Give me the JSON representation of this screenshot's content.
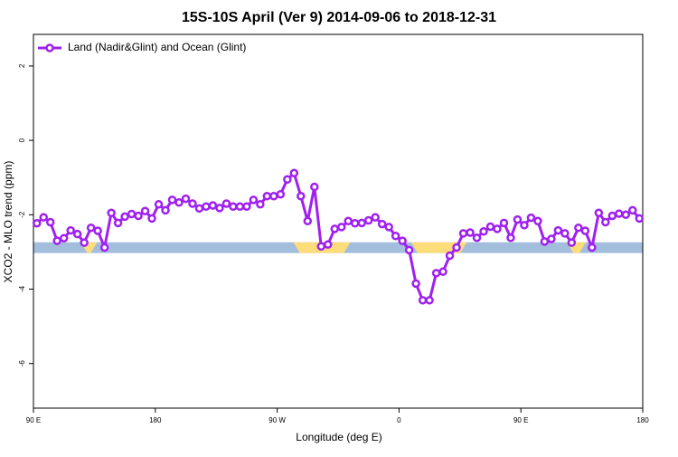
{
  "chart_data": {
    "type": "line",
    "title": "15S-10S April (Ver 9)   2014-09-06 to 2018-12-31",
    "xlabel": "Longitude (deg E)",
    "ylabel": "XCO2 - MLO trend (ppm)",
    "xlim": [
      90,
      540
    ],
    "ylim": [
      -7.2,
      2.85
    ],
    "xticks": [
      {
        "value": 90,
        "label": "90 E"
      },
      180,
      {
        "value": 270,
        "label": "90 W"
      },
      {
        "value": 360,
        "label": "0"
      },
      {
        "value": 450,
        "label": "90 E"
      },
      {
        "value": 540,
        "label": "180"
      }
    ],
    "yticks": [
      -6,
      -4,
      -2,
      0,
      2
    ],
    "legend": "top-left",
    "surface_band": {
      "ylim": [
        -3.03,
        -2.74
      ],
      "ocean_color": "#a3bedd",
      "land_color": "#fddc7a",
      "land_ranges": [
        [
          125,
          137
        ],
        [
          282,
          324
        ],
        [
          369,
          410
        ],
        [
          484,
          498
        ]
      ]
    },
    "x": [
      92.5,
      97.5,
      102.5,
      107.5,
      112.5,
      117.5,
      122.5,
      127.5,
      132.5,
      137.5,
      142.5,
      147.5,
      152.5,
      157.5,
      162.5,
      167.5,
      172.5,
      177.5,
      182.5,
      187.5,
      192.5,
      197.5,
      202.5,
      207.5,
      212.5,
      217.5,
      222.5,
      227.5,
      232.5,
      237.5,
      242.5,
      247.5,
      252.5,
      257.5,
      262.5,
      267.5,
      272.5,
      277.5,
      282.5,
      287.5,
      292.5,
      297.5,
      302.5,
      307.5,
      312.5,
      317.5,
      322.5,
      327.5,
      332.5,
      337.5,
      342.5,
      347.5,
      352.5,
      357.5,
      362.5,
      367.5,
      372.5,
      377.5,
      382.5,
      387.5,
      392.5,
      397.5,
      402.5,
      407.5,
      412.5,
      417.5,
      422.5,
      427.5,
      432.5,
      437.5,
      442.5,
      447.5,
      452.5,
      457.5,
      462.5,
      467.5,
      472.5,
      477.5,
      482.5,
      487.5,
      492.5,
      497.5,
      502.5,
      507.5,
      512.5,
      517.5,
      522.5,
      527.5,
      532.5,
      537.5
    ],
    "series": [
      {
        "name": "Land (Nadir&Glint) and Ocean (Glint)",
        "color": "#a020f0",
        "values": [
          -2.23,
          -2.07,
          -2.2,
          -2.7,
          -2.63,
          -2.42,
          -2.52,
          -2.75,
          -2.35,
          -2.43,
          -2.88,
          -1.95,
          -2.22,
          -2.05,
          -1.98,
          -2.03,
          -1.9,
          -2.1,
          -1.72,
          -1.88,
          -1.6,
          -1.67,
          -1.57,
          -1.7,
          -1.83,
          -1.78,
          -1.75,
          -1.82,
          -1.7,
          -1.78,
          -1.78,
          -1.78,
          -1.6,
          -1.72,
          -1.5,
          -1.5,
          -1.45,
          -1.05,
          -0.88,
          -1.5,
          -2.17,
          -1.25,
          -2.85,
          -2.8,
          -2.38,
          -2.33,
          -2.17,
          -2.23,
          -2.22,
          -2.15,
          -2.07,
          -2.25,
          -2.33,
          -2.57,
          -2.7,
          -2.95,
          -3.85,
          -4.3,
          -4.3,
          -3.57,
          -3.53,
          -3.1,
          -2.88,
          -2.5,
          -2.48,
          -2.62,
          -2.45,
          -2.32,
          -2.38,
          -2.22,
          -2.62,
          -2.13,
          -2.28,
          -2.08,
          -2.17,
          -2.72,
          -2.65,
          -2.42,
          -2.5,
          -2.75,
          -2.35,
          -2.43,
          -2.88,
          -1.95,
          -2.2,
          -2.03,
          -1.97,
          -2.0,
          -1.88,
          -2.1
        ]
      }
    ]
  }
}
